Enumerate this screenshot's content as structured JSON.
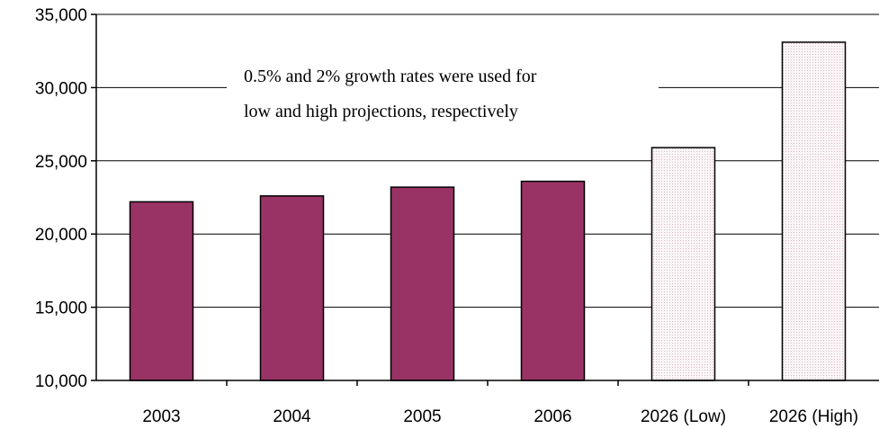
{
  "chart_data": {
    "type": "bar",
    "categories": [
      "2003",
      "2004",
      "2005",
      "2006",
      "2026 (Low)",
      "2026 (High)"
    ],
    "values": [
      22200,
      22600,
      23200,
      23600,
      25900,
      33100
    ],
    "bar_styles": [
      "actual",
      "actual",
      "actual",
      "actual",
      "projection",
      "projection"
    ],
    "ylim": [
      10000,
      35000
    ],
    "yticks": [
      10000,
      15000,
      20000,
      25000,
      30000,
      35000
    ],
    "ytick_labels": [
      "10,000",
      "15,000",
      "20,000",
      "25,000",
      "30,000",
      "35,000"
    ],
    "grid": true,
    "annotation": [
      "0.5% and 2% growth rates were used for",
      "low and high projections, respectively"
    ],
    "colors": {
      "actual": "#993366",
      "projection": "#f6eef1",
      "gridline": "#000000"
    }
  }
}
